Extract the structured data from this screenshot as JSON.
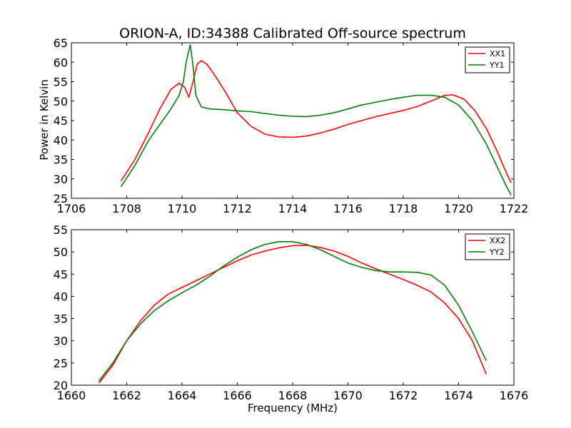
{
  "title": "ORION-A, ID:34388 Calibrated Off-source spectrum",
  "colors": {
    "xx": "#ff0000",
    "yy": "#008000"
  },
  "chart_data": [
    {
      "type": "line",
      "title": "ORION-A, ID:34388 Calibrated Off-source spectrum",
      "xlabel": "",
      "ylabel": "Power in Kelvin",
      "xlim": [
        1706,
        1722
      ],
      "ylim": [
        25,
        65
      ],
      "xticks": [
        1706,
        1708,
        1710,
        1712,
        1714,
        1716,
        1718,
        1720,
        1722
      ],
      "yticks": [
        25,
        30,
        35,
        40,
        45,
        50,
        55,
        60,
        65
      ],
      "legend": "top-right",
      "grid": false,
      "series": [
        {
          "name": "XX1",
          "color": "#ff0000",
          "points": [
            [
              1707.8,
              29.5
            ],
            [
              1708.3,
              35
            ],
            [
              1708.8,
              42
            ],
            [
              1709.2,
              48
            ],
            [
              1709.6,
              53
            ],
            [
              1709.9,
              54.6
            ],
            [
              1710.1,
              53.5
            ],
            [
              1710.25,
              51
            ],
            [
              1710.4,
              55
            ],
            [
              1710.55,
              59.5
            ],
            [
              1710.7,
              60.4
            ],
            [
              1710.9,
              59.5
            ],
            [
              1711.2,
              56.5
            ],
            [
              1711.6,
              52
            ],
            [
              1712.0,
              47
            ],
            [
              1712.5,
              43.5
            ],
            [
              1713.0,
              41.5
            ],
            [
              1713.5,
              40.8
            ],
            [
              1714.0,
              40.7
            ],
            [
              1714.5,
              41
            ],
            [
              1715.0,
              41.8
            ],
            [
              1715.5,
              42.8
            ],
            [
              1716.0,
              44
            ],
            [
              1716.5,
              45
            ],
            [
              1717.0,
              46
            ],
            [
              1717.5,
              46.8
            ],
            [
              1718.0,
              47.6
            ],
            [
              1718.5,
              48.6
            ],
            [
              1719.0,
              50
            ],
            [
              1719.5,
              51.5
            ],
            [
              1719.8,
              51.6
            ],
            [
              1720.2,
              50.5
            ],
            [
              1720.6,
              47.5
            ],
            [
              1721.0,
              43
            ],
            [
              1721.4,
              37
            ],
            [
              1721.7,
              32
            ],
            [
              1721.9,
              29
            ]
          ]
        },
        {
          "name": "YY1",
          "color": "#008000",
          "points": [
            [
              1707.8,
              28
            ],
            [
              1708.3,
              33.5
            ],
            [
              1708.8,
              40
            ],
            [
              1709.2,
              44
            ],
            [
              1709.6,
              48
            ],
            [
              1709.9,
              51.5
            ],
            [
              1710.05,
              55
            ],
            [
              1710.15,
              60
            ],
            [
              1710.3,
              64.5
            ],
            [
              1710.4,
              59
            ],
            [
              1710.5,
              51.5
            ],
            [
              1710.7,
              48.5
            ],
            [
              1711.0,
              48
            ],
            [
              1711.5,
              47.8
            ],
            [
              1712.0,
              47.5
            ],
            [
              1712.5,
              47.3
            ],
            [
              1713.0,
              46.8
            ],
            [
              1713.5,
              46.4
            ],
            [
              1714.0,
              46.1
            ],
            [
              1714.5,
              46
            ],
            [
              1715.0,
              46.4
            ],
            [
              1715.5,
              47
            ],
            [
              1716.0,
              48
            ],
            [
              1716.5,
              49
            ],
            [
              1717.0,
              49.7
            ],
            [
              1717.5,
              50.4
            ],
            [
              1718.0,
              51
            ],
            [
              1718.5,
              51.5
            ],
            [
              1719.0,
              51.5
            ],
            [
              1719.5,
              51
            ],
            [
              1720.0,
              49
            ],
            [
              1720.5,
              45
            ],
            [
              1721.0,
              39
            ],
            [
              1721.4,
              33
            ],
            [
              1721.7,
              28.5
            ],
            [
              1721.9,
              25.8
            ]
          ]
        }
      ]
    },
    {
      "type": "line",
      "title": "",
      "xlabel": "Frequency (MHz)",
      "ylabel": "",
      "xlim": [
        1660,
        1676
      ],
      "ylim": [
        20,
        55
      ],
      "xticks": [
        1660,
        1662,
        1664,
        1666,
        1668,
        1670,
        1672,
        1674,
        1676
      ],
      "yticks": [
        20,
        25,
        30,
        35,
        40,
        45,
        50,
        55
      ],
      "legend": "top-right",
      "grid": false,
      "series": [
        {
          "name": "XX2",
          "color": "#ff0000",
          "points": [
            [
              1661.0,
              20.5
            ],
            [
              1661.5,
              24.5
            ],
            [
              1662.0,
              30
            ],
            [
              1662.5,
              34.5
            ],
            [
              1663.0,
              38
            ],
            [
              1663.5,
              40.5
            ],
            [
              1664.0,
              42
            ],
            [
              1664.5,
              43.5
            ],
            [
              1665.0,
              45
            ],
            [
              1665.5,
              46.5
            ],
            [
              1666.0,
              48
            ],
            [
              1666.5,
              49.3
            ],
            [
              1667.0,
              50.2
            ],
            [
              1667.5,
              50.9
            ],
            [
              1668.0,
              51.4
            ],
            [
              1668.5,
              51.5
            ],
            [
              1669.0,
              51
            ],
            [
              1669.5,
              50.2
            ],
            [
              1670.0,
              49
            ],
            [
              1670.5,
              47.5
            ],
            [
              1671.0,
              46.2
            ],
            [
              1671.5,
              45
            ],
            [
              1672.0,
              43.8
            ],
            [
              1672.5,
              42.5
            ],
            [
              1673.0,
              41
            ],
            [
              1673.5,
              38.5
            ],
            [
              1674.0,
              35
            ],
            [
              1674.5,
              30
            ],
            [
              1675.0,
              22.5
            ]
          ]
        },
        {
          "name": "YY2",
          "color": "#008000",
          "points": [
            [
              1661.0,
              21
            ],
            [
              1661.5,
              25
            ],
            [
              1662.0,
              30
            ],
            [
              1662.5,
              33.8
            ],
            [
              1663.0,
              36.8
            ],
            [
              1663.5,
              39
            ],
            [
              1664.0,
              40.8
            ],
            [
              1664.5,
              42.5
            ],
            [
              1665.0,
              44.5
            ],
            [
              1665.5,
              46.8
            ],
            [
              1666.0,
              48.8
            ],
            [
              1666.5,
              50.5
            ],
            [
              1667.0,
              51.7
            ],
            [
              1667.5,
              52.3
            ],
            [
              1668.0,
              52.3
            ],
            [
              1668.5,
              51.7
            ],
            [
              1669.0,
              50.5
            ],
            [
              1669.5,
              49
            ],
            [
              1670.0,
              47.5
            ],
            [
              1670.5,
              46.5
            ],
            [
              1671.0,
              45.8
            ],
            [
              1671.5,
              45.5
            ],
            [
              1672.0,
              45.5
            ],
            [
              1672.5,
              45.4
            ],
            [
              1673.0,
              44.8
            ],
            [
              1673.5,
              42.5
            ],
            [
              1674.0,
              38
            ],
            [
              1674.5,
              32
            ],
            [
              1675.0,
              25.5
            ]
          ]
        }
      ]
    }
  ]
}
